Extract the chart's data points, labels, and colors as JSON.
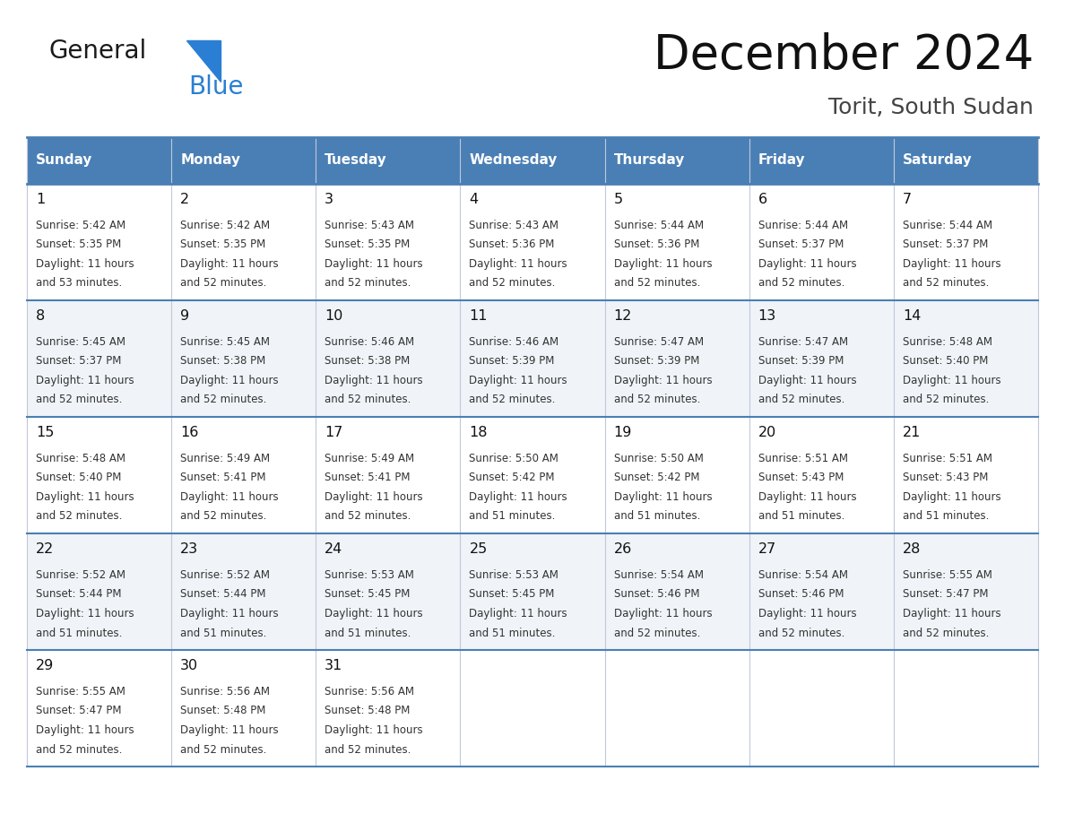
{
  "title": "December 2024",
  "subtitle": "Torit, South Sudan",
  "header_color": "#4a7fb5",
  "header_text_color": "#ffffff",
  "day_names": [
    "Sunday",
    "Monday",
    "Tuesday",
    "Wednesday",
    "Thursday",
    "Friday",
    "Saturday"
  ],
  "cell_bg_even": "#ffffff",
  "cell_bg_odd": "#f0f4f8",
  "border_color": "#4a7fb5",
  "thin_border_color": "#c0c8d8",
  "day_num_color": "#111111",
  "cell_text_color": "#333333",
  "logo_general_color": "#1a1a1a",
  "logo_blue_color": "#2a7fd4",
  "logo_triangle_color": "#2a7fd4",
  "days": [
    {
      "day": 1,
      "col": 0,
      "row": 0,
      "sunrise": "5:42 AM",
      "sunset": "5:35 PM",
      "daylight_h": "11 hours",
      "daylight_m": "and 53 minutes."
    },
    {
      "day": 2,
      "col": 1,
      "row": 0,
      "sunrise": "5:42 AM",
      "sunset": "5:35 PM",
      "daylight_h": "11 hours",
      "daylight_m": "and 52 minutes."
    },
    {
      "day": 3,
      "col": 2,
      "row": 0,
      "sunrise": "5:43 AM",
      "sunset": "5:35 PM",
      "daylight_h": "11 hours",
      "daylight_m": "and 52 minutes."
    },
    {
      "day": 4,
      "col": 3,
      "row": 0,
      "sunrise": "5:43 AM",
      "sunset": "5:36 PM",
      "daylight_h": "11 hours",
      "daylight_m": "and 52 minutes."
    },
    {
      "day": 5,
      "col": 4,
      "row": 0,
      "sunrise": "5:44 AM",
      "sunset": "5:36 PM",
      "daylight_h": "11 hours",
      "daylight_m": "and 52 minutes."
    },
    {
      "day": 6,
      "col": 5,
      "row": 0,
      "sunrise": "5:44 AM",
      "sunset": "5:37 PM",
      "daylight_h": "11 hours",
      "daylight_m": "and 52 minutes."
    },
    {
      "day": 7,
      "col": 6,
      "row": 0,
      "sunrise": "5:44 AM",
      "sunset": "5:37 PM",
      "daylight_h": "11 hours",
      "daylight_m": "and 52 minutes."
    },
    {
      "day": 8,
      "col": 0,
      "row": 1,
      "sunrise": "5:45 AM",
      "sunset": "5:37 PM",
      "daylight_h": "11 hours",
      "daylight_m": "and 52 minutes."
    },
    {
      "day": 9,
      "col": 1,
      "row": 1,
      "sunrise": "5:45 AM",
      "sunset": "5:38 PM",
      "daylight_h": "11 hours",
      "daylight_m": "and 52 minutes."
    },
    {
      "day": 10,
      "col": 2,
      "row": 1,
      "sunrise": "5:46 AM",
      "sunset": "5:38 PM",
      "daylight_h": "11 hours",
      "daylight_m": "and 52 minutes."
    },
    {
      "day": 11,
      "col": 3,
      "row": 1,
      "sunrise": "5:46 AM",
      "sunset": "5:39 PM",
      "daylight_h": "11 hours",
      "daylight_m": "and 52 minutes."
    },
    {
      "day": 12,
      "col": 4,
      "row": 1,
      "sunrise": "5:47 AM",
      "sunset": "5:39 PM",
      "daylight_h": "11 hours",
      "daylight_m": "and 52 minutes."
    },
    {
      "day": 13,
      "col": 5,
      "row": 1,
      "sunrise": "5:47 AM",
      "sunset": "5:39 PM",
      "daylight_h": "11 hours",
      "daylight_m": "and 52 minutes."
    },
    {
      "day": 14,
      "col": 6,
      "row": 1,
      "sunrise": "5:48 AM",
      "sunset": "5:40 PM",
      "daylight_h": "11 hours",
      "daylight_m": "and 52 minutes."
    },
    {
      "day": 15,
      "col": 0,
      "row": 2,
      "sunrise": "5:48 AM",
      "sunset": "5:40 PM",
      "daylight_h": "11 hours",
      "daylight_m": "and 52 minutes."
    },
    {
      "day": 16,
      "col": 1,
      "row": 2,
      "sunrise": "5:49 AM",
      "sunset": "5:41 PM",
      "daylight_h": "11 hours",
      "daylight_m": "and 52 minutes."
    },
    {
      "day": 17,
      "col": 2,
      "row": 2,
      "sunrise": "5:49 AM",
      "sunset": "5:41 PM",
      "daylight_h": "11 hours",
      "daylight_m": "and 52 minutes."
    },
    {
      "day": 18,
      "col": 3,
      "row": 2,
      "sunrise": "5:50 AM",
      "sunset": "5:42 PM",
      "daylight_h": "11 hours",
      "daylight_m": "and 51 minutes."
    },
    {
      "day": 19,
      "col": 4,
      "row": 2,
      "sunrise": "5:50 AM",
      "sunset": "5:42 PM",
      "daylight_h": "11 hours",
      "daylight_m": "and 51 minutes."
    },
    {
      "day": 20,
      "col": 5,
      "row": 2,
      "sunrise": "5:51 AM",
      "sunset": "5:43 PM",
      "daylight_h": "11 hours",
      "daylight_m": "and 51 minutes."
    },
    {
      "day": 21,
      "col": 6,
      "row": 2,
      "sunrise": "5:51 AM",
      "sunset": "5:43 PM",
      "daylight_h": "11 hours",
      "daylight_m": "and 51 minutes."
    },
    {
      "day": 22,
      "col": 0,
      "row": 3,
      "sunrise": "5:52 AM",
      "sunset": "5:44 PM",
      "daylight_h": "11 hours",
      "daylight_m": "and 51 minutes."
    },
    {
      "day": 23,
      "col": 1,
      "row": 3,
      "sunrise": "5:52 AM",
      "sunset": "5:44 PM",
      "daylight_h": "11 hours",
      "daylight_m": "and 51 minutes."
    },
    {
      "day": 24,
      "col": 2,
      "row": 3,
      "sunrise": "5:53 AM",
      "sunset": "5:45 PM",
      "daylight_h": "11 hours",
      "daylight_m": "and 51 minutes."
    },
    {
      "day": 25,
      "col": 3,
      "row": 3,
      "sunrise": "5:53 AM",
      "sunset": "5:45 PM",
      "daylight_h": "11 hours",
      "daylight_m": "and 51 minutes."
    },
    {
      "day": 26,
      "col": 4,
      "row": 3,
      "sunrise": "5:54 AM",
      "sunset": "5:46 PM",
      "daylight_h": "11 hours",
      "daylight_m": "and 52 minutes."
    },
    {
      "day": 27,
      "col": 5,
      "row": 3,
      "sunrise": "5:54 AM",
      "sunset": "5:46 PM",
      "daylight_h": "11 hours",
      "daylight_m": "and 52 minutes."
    },
    {
      "day": 28,
      "col": 6,
      "row": 3,
      "sunrise": "5:55 AM",
      "sunset": "5:47 PM",
      "daylight_h": "11 hours",
      "daylight_m": "and 52 minutes."
    },
    {
      "day": 29,
      "col": 0,
      "row": 4,
      "sunrise": "5:55 AM",
      "sunset": "5:47 PM",
      "daylight_h": "11 hours",
      "daylight_m": "and 52 minutes."
    },
    {
      "day": 30,
      "col": 1,
      "row": 4,
      "sunrise": "5:56 AM",
      "sunset": "5:48 PM",
      "daylight_h": "11 hours",
      "daylight_m": "and 52 minutes."
    },
    {
      "day": 31,
      "col": 2,
      "row": 4,
      "sunrise": "5:56 AM",
      "sunset": "5:48 PM",
      "daylight_h": "11 hours",
      "daylight_m": "and 52 minutes."
    }
  ]
}
